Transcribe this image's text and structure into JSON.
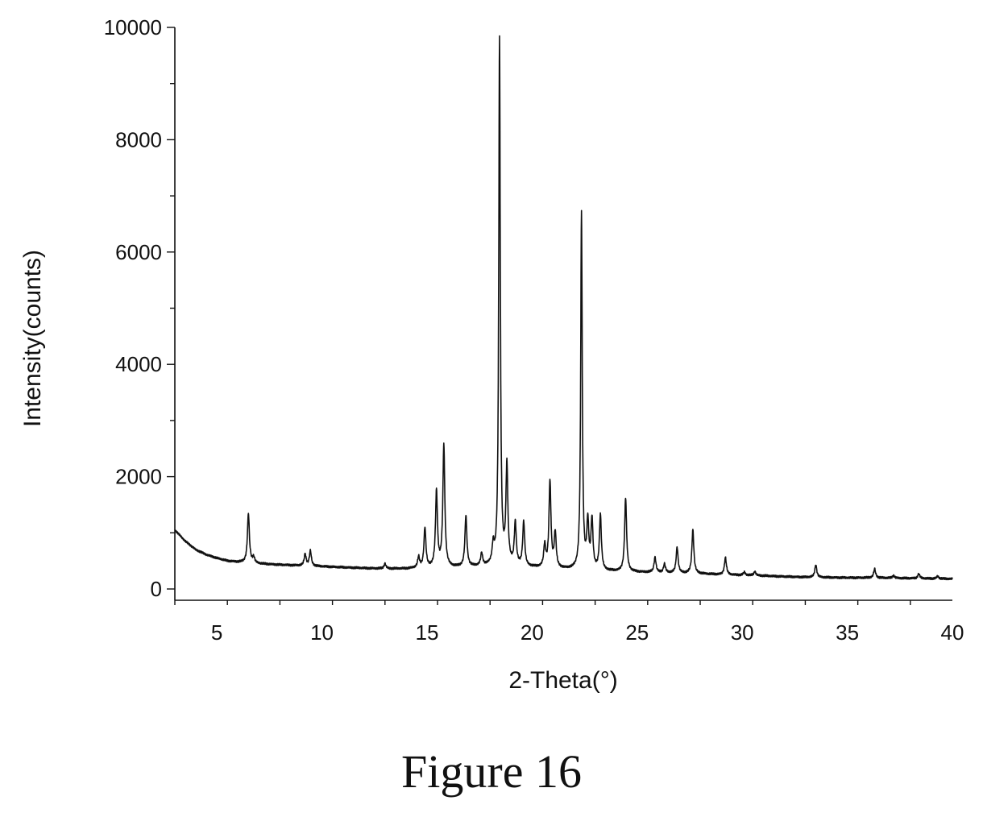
{
  "figure": {
    "caption": "Figure 16"
  },
  "chart_data": {
    "type": "line",
    "xlabel": "2-Theta(°)",
    "ylabel": "Intensity(counts)",
    "xlim": [
      3,
      40
    ],
    "ylim": [
      -200,
      10000
    ],
    "x_ticks": [
      5,
      10,
      15,
      20,
      25,
      30,
      35,
      40
    ],
    "y_ticks": [
      0,
      2000,
      4000,
      6000,
      8000,
      10000
    ],
    "grid": false,
    "line_color": "#111111",
    "baseline": [
      [
        3.0,
        1050
      ],
      [
        3.5,
        850
      ],
      [
        4,
        700
      ],
      [
        4.5,
        610
      ],
      [
        5,
        550
      ],
      [
        5.5,
        500
      ],
      [
        6,
        480
      ],
      [
        7,
        450
      ],
      [
        8,
        430
      ],
      [
        9,
        415
      ],
      [
        10,
        400
      ],
      [
        11,
        385
      ],
      [
        12,
        370
      ],
      [
        13,
        360
      ],
      [
        14,
        360
      ],
      [
        14.5,
        370
      ],
      [
        16,
        380
      ],
      [
        17,
        390
      ],
      [
        18,
        400
      ],
      [
        19,
        400
      ],
      [
        20,
        380
      ],
      [
        21,
        360
      ],
      [
        22,
        340
      ],
      [
        23,
        320
      ],
      [
        24,
        310
      ],
      [
        25,
        300
      ],
      [
        26,
        290
      ],
      [
        27,
        280
      ],
      [
        28,
        270
      ],
      [
        29,
        255
      ],
      [
        30,
        245
      ],
      [
        31,
        235
      ],
      [
        32,
        220
      ],
      [
        33,
        210
      ],
      [
        34,
        205
      ],
      [
        35,
        200
      ],
      [
        36,
        200
      ],
      [
        37,
        195
      ],
      [
        38,
        190
      ],
      [
        39,
        185
      ],
      [
        40,
        180
      ]
    ],
    "peaks": [
      {
        "x": 6.5,
        "y": 1350
      },
      {
        "x": 6.75,
        "y": 560
      },
      {
        "x": 9.2,
        "y": 620
      },
      {
        "x": 9.45,
        "y": 680
      },
      {
        "x": 13.0,
        "y": 450
      },
      {
        "x": 14.6,
        "y": 560
      },
      {
        "x": 14.9,
        "y": 1080
      },
      {
        "x": 15.45,
        "y": 1720
      },
      {
        "x": 15.8,
        "y": 2560
      },
      {
        "x": 16.85,
        "y": 1300
      },
      {
        "x": 17.6,
        "y": 620
      },
      {
        "x": 18.15,
        "y": 720
      },
      {
        "x": 18.45,
        "y": 9800
      },
      {
        "x": 18.8,
        "y": 2150
      },
      {
        "x": 19.2,
        "y": 1150
      },
      {
        "x": 19.6,
        "y": 1180
      },
      {
        "x": 20.6,
        "y": 760
      },
      {
        "x": 20.85,
        "y": 1900
      },
      {
        "x": 21.1,
        "y": 980
      },
      {
        "x": 22.35,
        "y": 6680
      },
      {
        "x": 22.65,
        "y": 1150
      },
      {
        "x": 22.85,
        "y": 1200
      },
      {
        "x": 23.25,
        "y": 1300
      },
      {
        "x": 24.45,
        "y": 1620
      },
      {
        "x": 25.85,
        "y": 560
      },
      {
        "x": 26.3,
        "y": 440
      },
      {
        "x": 26.9,
        "y": 740
      },
      {
        "x": 27.65,
        "y": 1050
      },
      {
        "x": 29.2,
        "y": 560
      },
      {
        "x": 30.1,
        "y": 300
      },
      {
        "x": 30.6,
        "y": 310
      },
      {
        "x": 33.5,
        "y": 430
      },
      {
        "x": 36.3,
        "y": 360
      },
      {
        "x": 37.2,
        "y": 240
      },
      {
        "x": 38.4,
        "y": 270
      },
      {
        "x": 39.3,
        "y": 230
      }
    ]
  }
}
